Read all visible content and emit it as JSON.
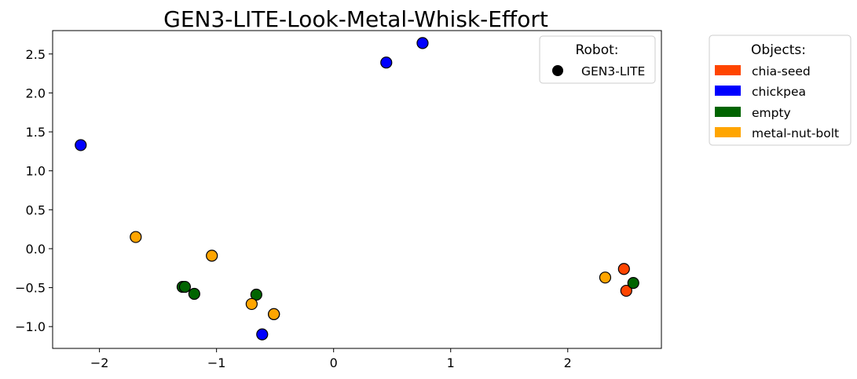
{
  "chart_data": {
    "type": "scatter",
    "title": "GEN3-LITE-Look-Metal-Whisk-Effort",
    "xlabel": "",
    "ylabel": "",
    "xlim": [
      -2.4,
      2.8
    ],
    "ylim": [
      -1.28,
      2.8
    ],
    "xticks": [
      -2,
      -1,
      0,
      1,
      2
    ],
    "xtick_labels": [
      "−2",
      "−1",
      "0",
      "1",
      "2"
    ],
    "yticks": [
      -1.0,
      -0.5,
      0.0,
      0.5,
      1.0,
      1.5,
      2.0,
      2.5
    ],
    "ytick_labels": [
      "−1.0",
      "−0.5",
      "0.0",
      "0.5",
      "1.0",
      "1.5",
      "2.0",
      "2.5"
    ],
    "grid": false,
    "robot_legend": {
      "title": "Robot:",
      "placement": "top-right",
      "entries": [
        {
          "label": "GEN3-LITE",
          "marker": "circle",
          "color": "#000000"
        }
      ]
    },
    "object_legend": {
      "title": "Objects:",
      "placement": "outside-right",
      "entries": [
        {
          "label": "chia-seed",
          "color": "#FF4500"
        },
        {
          "label": "chickpea",
          "color": "#0000FF"
        },
        {
          "label": "empty",
          "color": "#006400"
        },
        {
          "label": "metal-nut-bolt",
          "color": "#FFA500"
        }
      ]
    },
    "series": [
      {
        "name": "chia-seed",
        "color": "#FF4500",
        "points": [
          [
            2.48,
            -0.26
          ],
          [
            2.5,
            -0.54
          ]
        ]
      },
      {
        "name": "chickpea",
        "color": "#0000FF",
        "points": [
          [
            -2.16,
            1.33
          ],
          [
            0.45,
            2.39
          ],
          [
            0.76,
            2.64
          ],
          [
            -0.61,
            -1.1
          ]
        ]
      },
      {
        "name": "empty",
        "color": "#006400",
        "points": [
          [
            -1.29,
            -0.49
          ],
          [
            -1.27,
            -0.49
          ],
          [
            -1.19,
            -0.58
          ],
          [
            -0.66,
            -0.59
          ],
          [
            -0.51,
            -0.84
          ],
          [
            2.56,
            -0.44
          ]
        ]
      },
      {
        "name": "metal-nut-bolt",
        "color": "#FFA500",
        "points": [
          [
            -1.69,
            0.15
          ],
          [
            -1.04,
            -0.09
          ],
          [
            -0.7,
            -0.71
          ],
          [
            -0.51,
            -0.84
          ],
          [
            2.32,
            -0.37
          ]
        ]
      }
    ]
  }
}
